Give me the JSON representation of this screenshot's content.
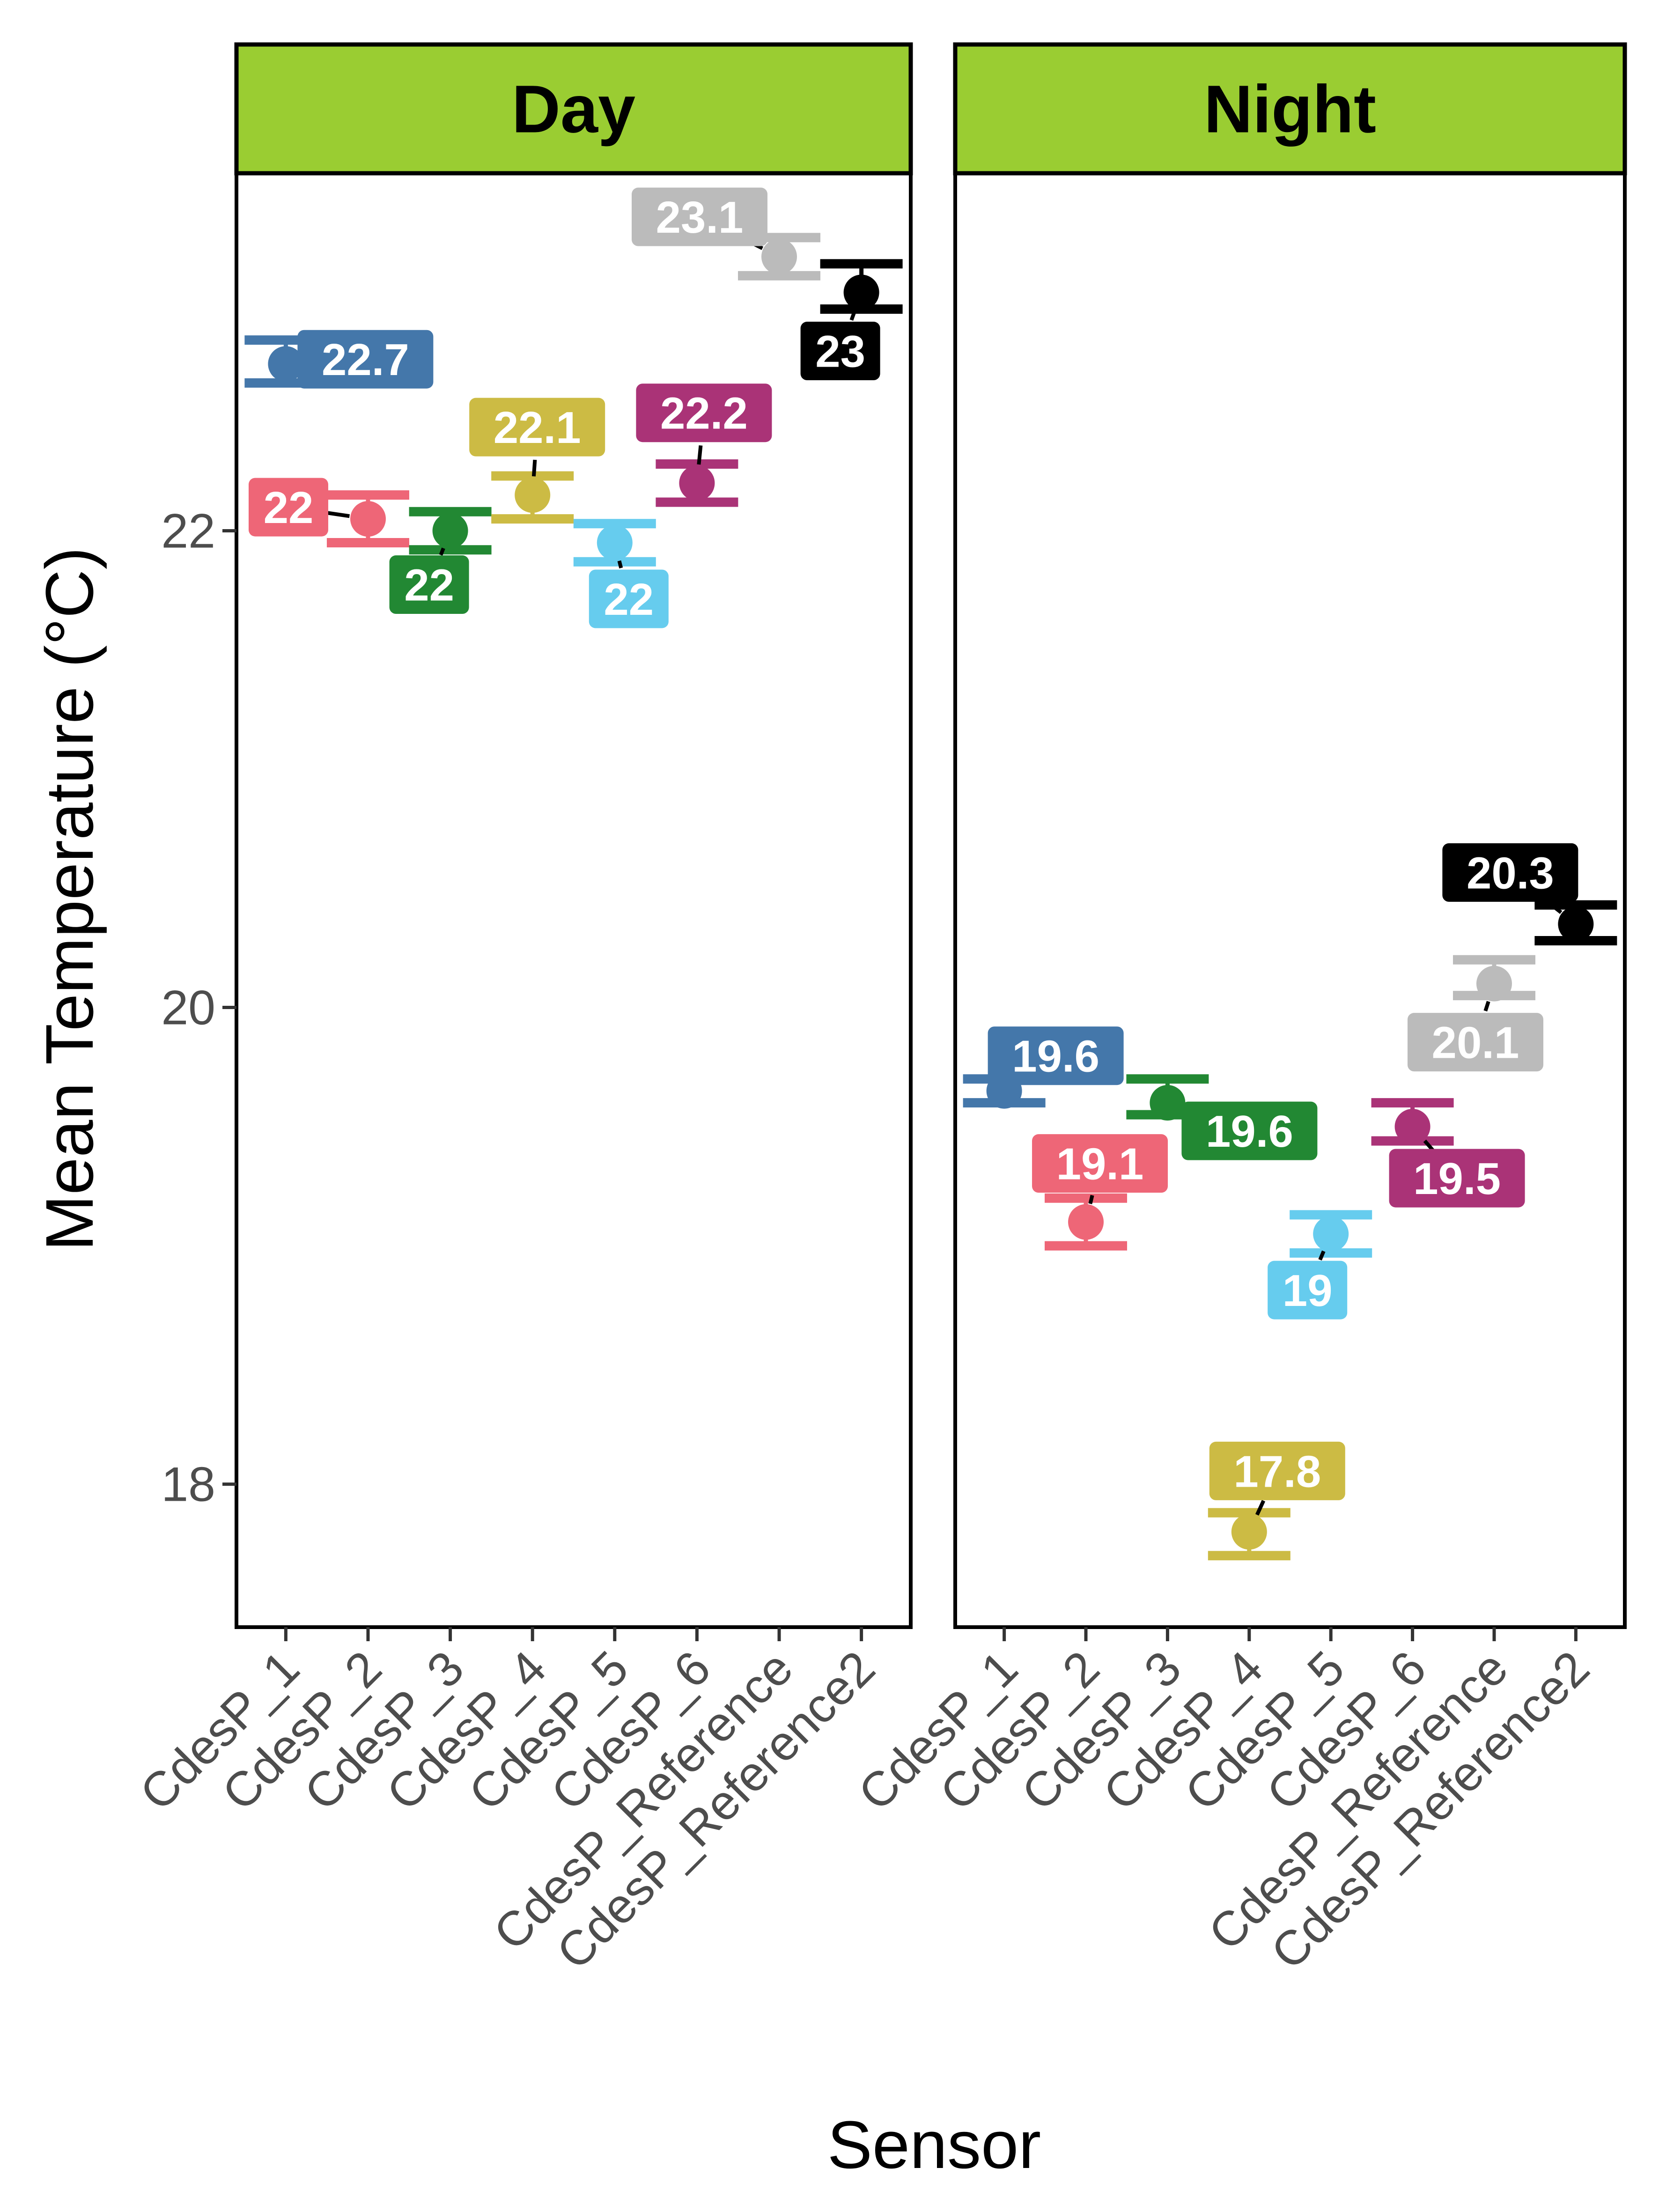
{
  "chart_data": {
    "type": "scatter",
    "xlabel": "Sensor",
    "ylabel": "Mean Temperature (°C)",
    "ylim": [
      17.4,
      23.5
    ],
    "yticks": [
      18,
      20,
      22
    ],
    "categories": [
      "CdesP_1",
      "CdesP_2",
      "CdesP_3",
      "CdesP_4",
      "CdesP_5",
      "CdesP_6",
      "CdesP_Reference",
      "CdesP_Reference2"
    ],
    "colors": [
      "#4477aa",
      "#ee6677",
      "#228833",
      "#ccbb44",
      "#66ccee",
      "#aa3377",
      "#bbbbbb",
      "#000000"
    ],
    "facets": [
      {
        "name": "Day",
        "means": [
          22.7,
          22.05,
          22.0,
          22.15,
          21.95,
          22.2,
          23.15,
          23.0
        ],
        "lower": [
          22.62,
          21.95,
          21.92,
          22.05,
          21.87,
          22.12,
          23.07,
          22.93
        ],
        "upper": [
          22.8,
          22.15,
          22.08,
          22.23,
          22.03,
          22.28,
          23.23,
          23.12
        ],
        "labels": [
          "22.7",
          "22",
          "22",
          "22.1",
          "22",
          "22.2",
          "23.1",
          "23"
        ]
      },
      {
        "name": "Night",
        "means": [
          19.65,
          19.1,
          19.6,
          17.8,
          19.05,
          19.5,
          20.1,
          20.35
        ],
        "lower": [
          19.6,
          19.0,
          19.55,
          17.7,
          18.97,
          19.44,
          20.05,
          20.28
        ],
        "upper": [
          19.7,
          19.2,
          19.7,
          17.88,
          19.13,
          19.6,
          20.2,
          20.43
        ],
        "labels": [
          "19.6",
          "19.1",
          "19.6",
          "17.8",
          "19",
          "19.5",
          "20.1",
          "20.3"
        ]
      }
    ]
  }
}
